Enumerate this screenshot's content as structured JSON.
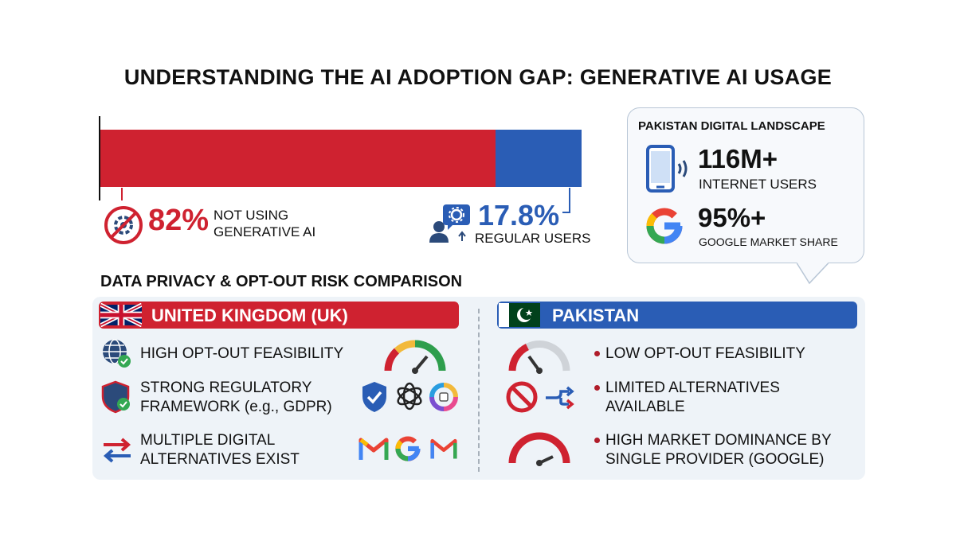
{
  "title": "UNDERSTANDING THE AI ADOPTION GAP: GENERATIVE AI USAGE",
  "chart_data": {
    "type": "bar",
    "stacked": true,
    "orientation": "horizontal",
    "series": [
      {
        "name": "NOT USING GENERATIVE AI",
        "value": 82,
        "value_label": "82%",
        "color": "#cf2230"
      },
      {
        "name": "REGULAR USERS",
        "value": 17.8,
        "value_label": "17.8%",
        "color": "#2a5db5"
      }
    ]
  },
  "adoption": {
    "not_using": {
      "value": "82%",
      "label_line1": "NOT USING",
      "label_line2": "GENERATIVE AI",
      "icon": "no-ai-icon"
    },
    "regular": {
      "value": "17.8%",
      "label": "REGULAR USERS",
      "icon": "user-gear-icon"
    }
  },
  "pakistan_card": {
    "title": "PAKISTAN DIGITAL LANDSCAPE",
    "internet": {
      "value": "116M+",
      "label": "INTERNET USERS",
      "icon": "smartphone-icon"
    },
    "google": {
      "value": "95%+",
      "label": "GOOGLE MARKET SHARE",
      "icon": "google-icon"
    }
  },
  "comparison": {
    "heading": "DATA PRIVACY & OPT-OUT RISK COMPARISON",
    "uk": {
      "title": "UNITED KINGDOM (UK)",
      "color": "#cf2230",
      "rows": [
        {
          "text": "HIGH OPT-OUT FEASIBILITY",
          "icon": "globe-check-icon",
          "visual": "high-gauge-icon"
        },
        {
          "line1": "STRONG REGULATORY",
          "line2": "FRAMEWORK (e.g., GDPR)",
          "icon": "shield-check-icon",
          "visual": "alternative-app-logos"
        },
        {
          "line1": "MULTIPLE DIGITAL",
          "line2": "ALTERNATIVES EXIST",
          "icon": "swap-arrows-icon",
          "visual": "mail-brand-logos"
        }
      ]
    },
    "pakistan": {
      "title": "PAKISTAN",
      "color": "#2a5db5",
      "rows": [
        {
          "text": "LOW OPT-OUT FEASIBILITY",
          "visual": "low-gauge-icon"
        },
        {
          "line1": "LIMITED ALTERNATIVES",
          "line2": "AVAILABLE",
          "visual": "prohibited-route-icon"
        },
        {
          "line1": "HIGH MARKET DOMINANCE BY",
          "line2": "SINGLE PROVIDER (GOOGLE)",
          "visual": "dominance-gauge-icon"
        }
      ]
    }
  }
}
